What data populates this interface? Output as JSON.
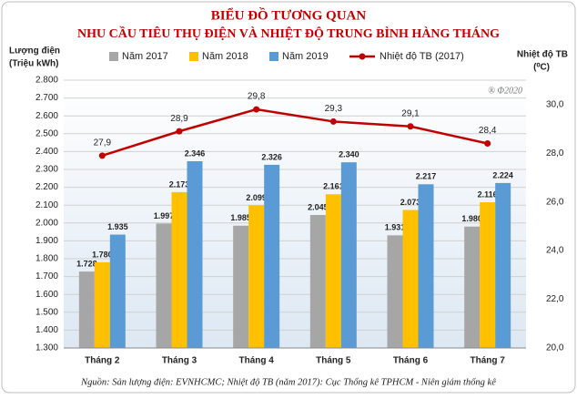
{
  "chart_data": {
    "type": "bar_line",
    "title": "BIỂU ĐỒ TƯƠNG QUAN",
    "subtitle": "NHU CẦU TIÊU THỤ ĐIỆN VÀ NHIỆT ĐỘ TRUNG BÌNH HÀNG THÁNG",
    "ylabel": [
      "Lượng điện",
      "(Triệu kWh)"
    ],
    "y2label": [
      "Nhiệt độ TB",
      "(⁰C)"
    ],
    "annotation": "® Φ2020",
    "source": "Nguồn: Sản lượng điện: EVNHCMC; Nhiệt độ TB (năm 2017): Cục Thống kê TPHCM - Niên giám thống kê",
    "categories": [
      "Tháng 2",
      "Tháng 3",
      "Tháng 4",
      "Tháng 5",
      "Tháng 6",
      "Tháng 7"
    ],
    "series": [
      {
        "name": "Năm 2017",
        "type": "bar",
        "color": "#a6a6a6",
        "values": [
          1728,
          1997,
          1985,
          2045,
          1931,
          1980
        ],
        "value_labels": [
          "1.728",
          "1.997",
          "1.985",
          "2.045",
          "1.931",
          "1.980"
        ]
      },
      {
        "name": "Năm 2018",
        "type": "bar",
        "color": "#ffc000",
        "values": [
          1780,
          2173,
          2099,
          2161,
          2073,
          2116
        ],
        "value_labels": [
          "1.780",
          "2.173",
          "2.099",
          "2.161",
          "2.073",
          "2.116"
        ]
      },
      {
        "name": "Năm 2019",
        "type": "bar",
        "color": "#5b9bd5",
        "values": [
          1935,
          2346,
          2326,
          2340,
          2217,
          2224
        ],
        "value_labels": [
          "1.935",
          "2.346",
          "2.326",
          "2.340",
          "2.217",
          "2.224"
        ]
      },
      {
        "name": "Nhiệt độ TB (2017)",
        "type": "line",
        "axis": "y2",
        "color": "#c00000",
        "values": [
          27.9,
          28.9,
          29.8,
          29.3,
          29.1,
          28.4
        ],
        "value_labels": [
          "27,9",
          "28,9",
          "29,8",
          "29,3",
          "29,1",
          "28,4"
        ]
      }
    ],
    "ylim": [
      1300,
      2800
    ],
    "yticks": [
      {
        "value": 1300,
        "label": "1.300"
      },
      {
        "value": 1400,
        "label": "1.400"
      },
      {
        "value": 1500,
        "label": "1.500"
      },
      {
        "value": 1600,
        "label": "1.600"
      },
      {
        "value": 1700,
        "label": "1.700"
      },
      {
        "value": 1800,
        "label": "1.800"
      },
      {
        "value": 1900,
        "label": "1.900"
      },
      {
        "value": 2000,
        "label": "2.000"
      },
      {
        "value": 2100,
        "label": "2.100"
      },
      {
        "value": 2200,
        "label": "2.200"
      },
      {
        "value": 2300,
        "label": "2.300"
      },
      {
        "value": 2400,
        "label": "2.400"
      },
      {
        "value": 2500,
        "label": "2.500"
      },
      {
        "value": 2600,
        "label": "2.600"
      },
      {
        "value": 2700,
        "label": "2.700"
      },
      {
        "value": 2800,
        "label": "2.800"
      }
    ],
    "y2lim": [
      20,
      31
    ],
    "y2ticks": [
      {
        "value": 20,
        "label": "20,0"
      },
      {
        "value": 22,
        "label": "22,0"
      },
      {
        "value": 24,
        "label": "24,0"
      },
      {
        "value": 26,
        "label": "26,0"
      },
      {
        "value": 28,
        "label": "28,0"
      },
      {
        "value": 30,
        "label": "30,0"
      }
    ],
    "grid": true
  }
}
